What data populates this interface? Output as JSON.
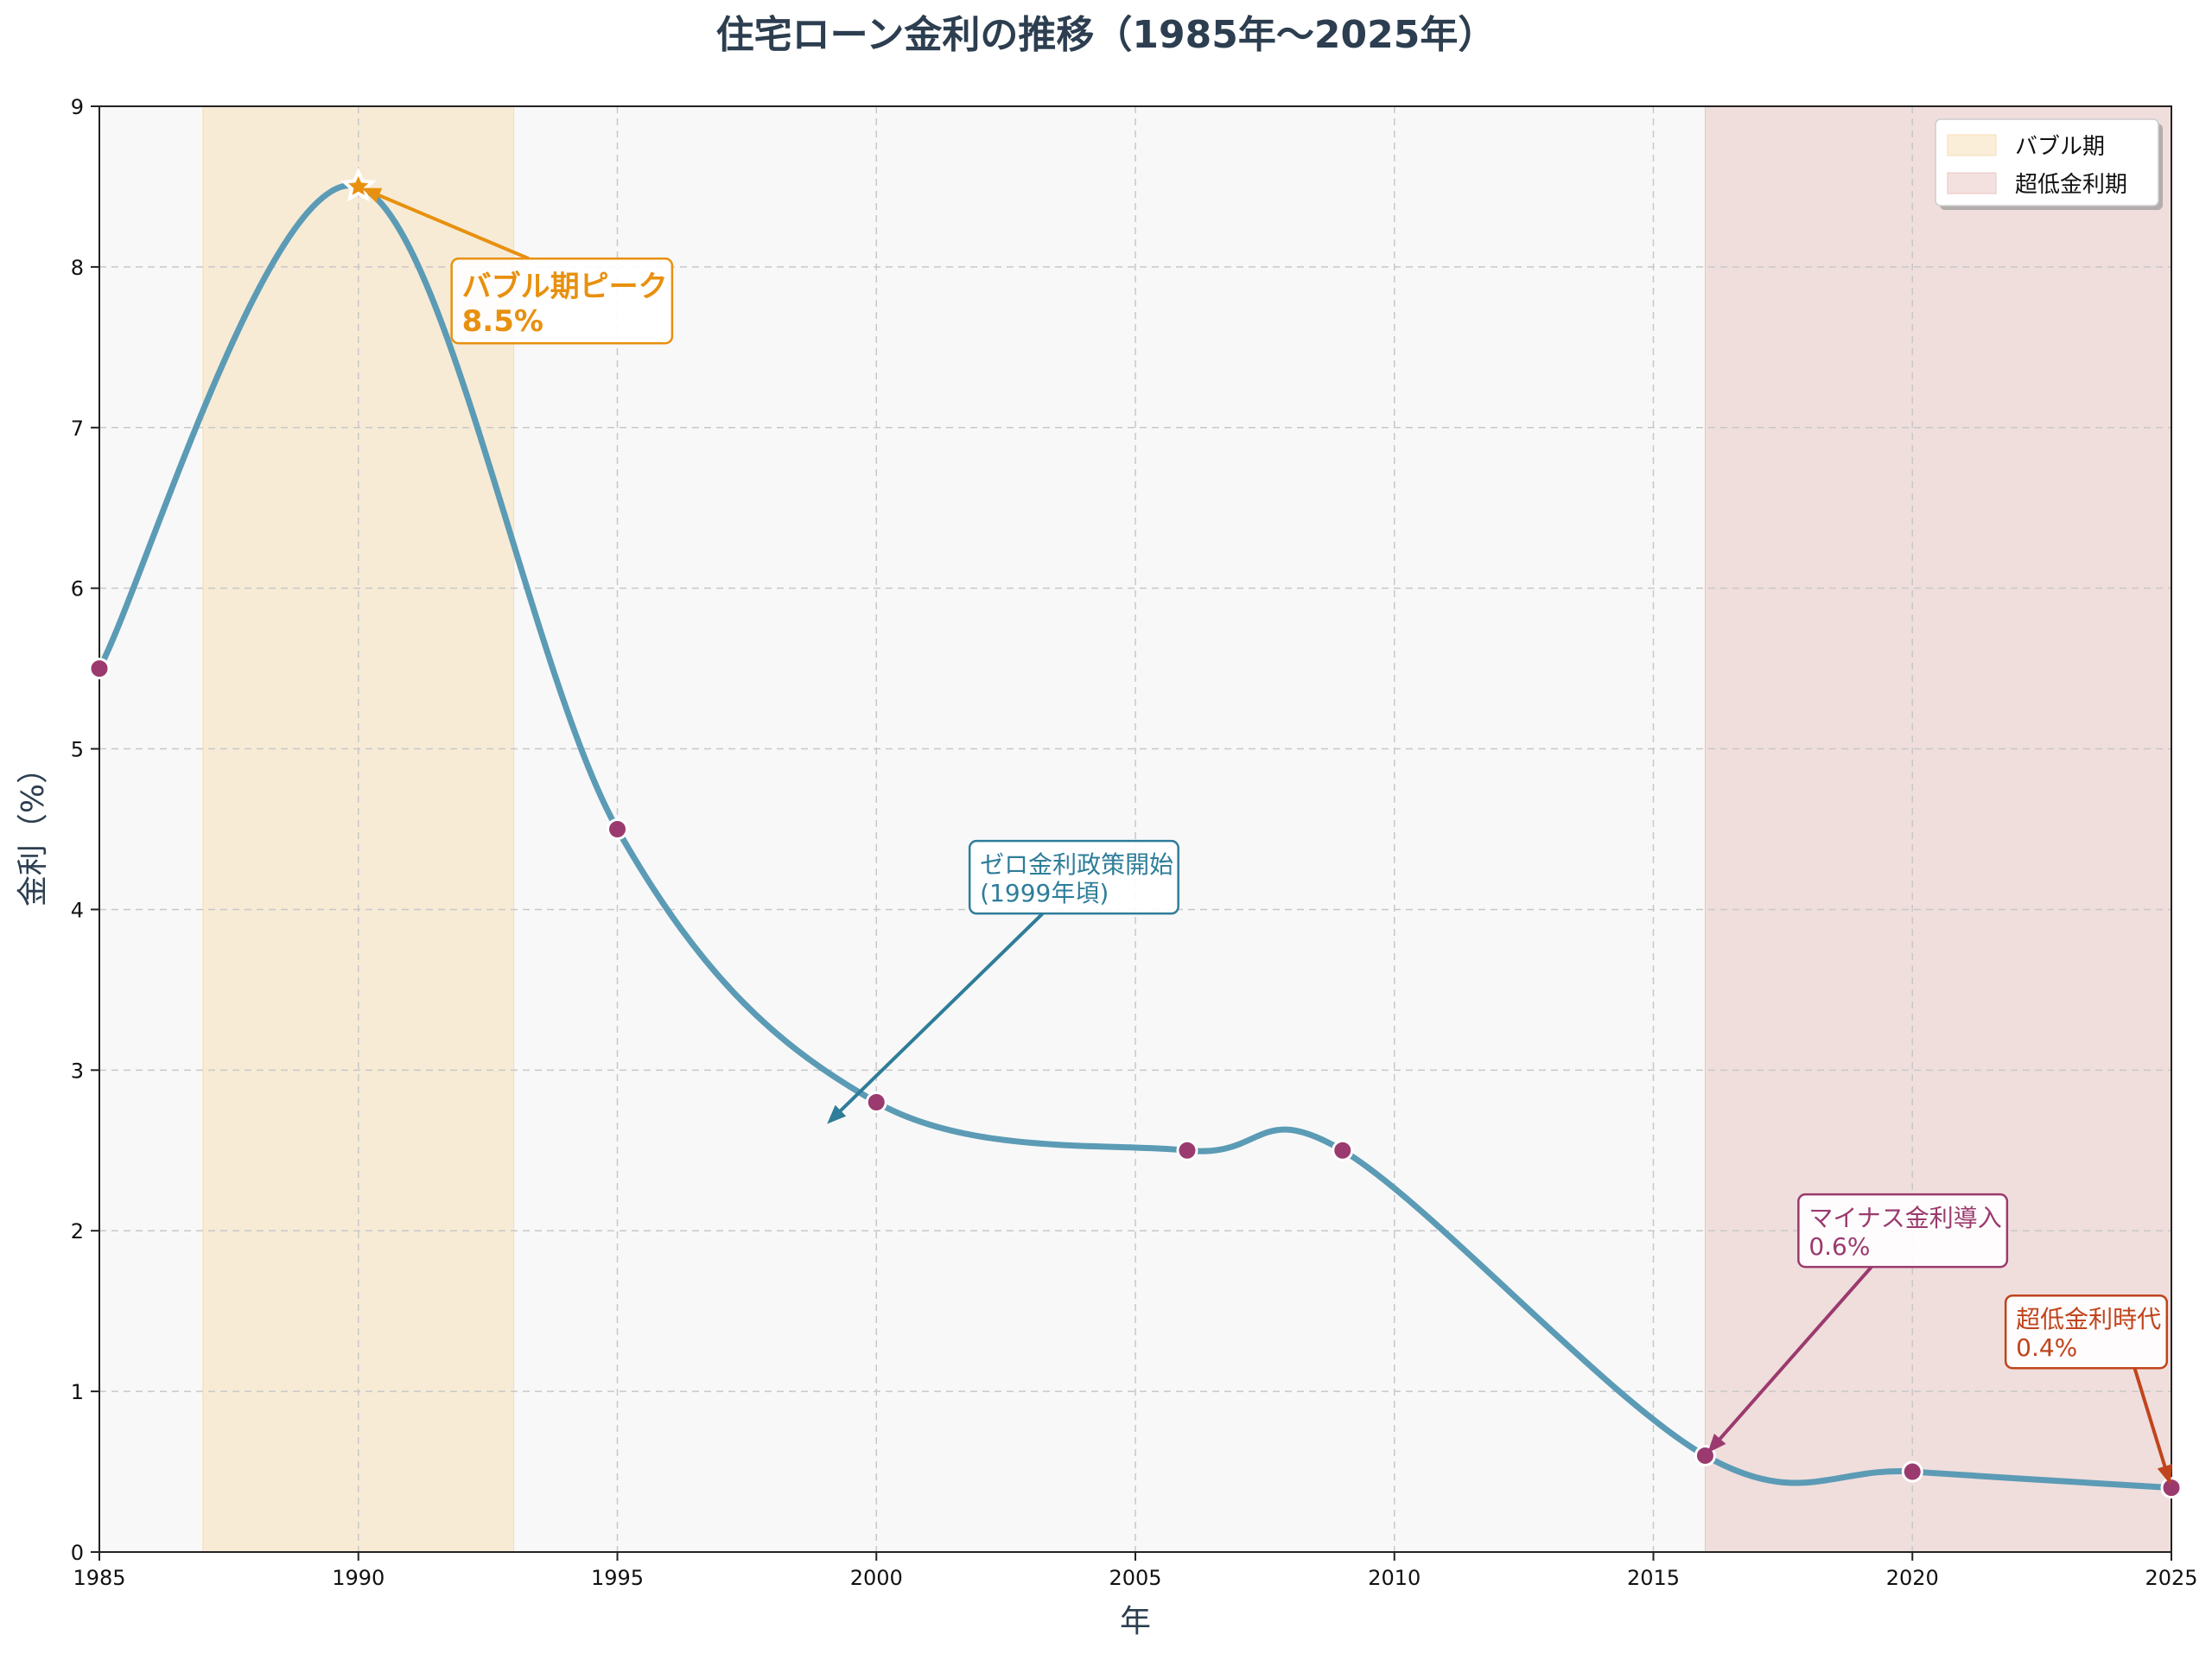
{
  "chart_data": {
    "type": "line",
    "title": "住宅ローン金利の推移（1985年〜2025年）",
    "xlabel": "年",
    "ylabel": "金利（%）",
    "xlim": [
      1985,
      2025
    ],
    "ylim": [
      0,
      9
    ],
    "x_ticks": [
      1985,
      1990,
      1995,
      2000,
      2005,
      2010,
      2015,
      2020,
      2025
    ],
    "y_ticks": [
      0,
      1,
      2,
      3,
      4,
      5,
      6,
      7,
      8,
      9
    ],
    "grid": true,
    "legend_position": "top-right",
    "x": [
      1985,
      1990,
      1995,
      2000,
      2006,
      2009,
      2016,
      2020,
      2025
    ],
    "y": [
      5.5,
      8.5,
      4.5,
      2.8,
      2.5,
      2.5,
      0.6,
      0.5,
      0.4
    ],
    "line_color": "#5b9bb5",
    "marker_color": "#9b3a6e",
    "peak_marker": {
      "x": 1990,
      "y": 8.5,
      "shape": "star"
    },
    "shaded_regions": [
      {
        "label": "バブル期",
        "from": 1987,
        "to": 1993,
        "color": "#f5deb3"
      },
      {
        "label": "超低金利期",
        "from": 2016,
        "to": 2025,
        "color": "#e8c4c0"
      }
    ],
    "annotations": [
      {
        "lines": [
          "バブル期ピーク",
          "8.5%"
        ],
        "point": [
          1990,
          8.5
        ],
        "text_at": [
          1992,
          7.6
        ],
        "color": "#e8900f",
        "bold": true
      },
      {
        "lines": [
          "ゼロ金利政策開始",
          "(1999年頃)"
        ],
        "point": [
          1999,
          2.65
        ],
        "text_at": [
          2002,
          4.05
        ],
        "color": "#2e7d99",
        "bold": false
      },
      {
        "lines": [
          "マイナス金利導入",
          "0.6%"
        ],
        "point": [
          2016,
          0.6
        ],
        "text_at": [
          2018,
          1.85
        ],
        "color": "#9b3a6e",
        "bold": false
      },
      {
        "lines": [
          "超低金利時代",
          "0.4%"
        ],
        "point": [
          2025,
          0.4
        ],
        "text_at": [
          2022,
          1.22
        ],
        "color": "#c0441c",
        "bold": false
      }
    ]
  }
}
